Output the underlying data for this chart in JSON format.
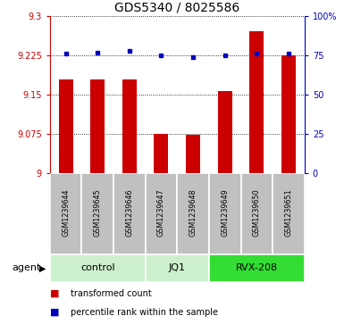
{
  "title": "GDS5340 / 8025586",
  "samples": [
    "GSM1239644",
    "GSM1239645",
    "GSM1239646",
    "GSM1239647",
    "GSM1239648",
    "GSM1239649",
    "GSM1239650",
    "GSM1239651"
  ],
  "bar_values": [
    9.18,
    9.18,
    9.18,
    9.075,
    9.073,
    9.157,
    9.272,
    9.225
  ],
  "percentile_values": [
    76,
    77,
    78,
    75,
    74,
    75,
    76,
    76
  ],
  "ylim_left": [
    9.0,
    9.3
  ],
  "ylim_right": [
    0,
    100
  ],
  "yticks_left": [
    9.0,
    9.075,
    9.15,
    9.225,
    9.3
  ],
  "ytick_labels_left": [
    "9",
    "9.075",
    "9.15",
    "9.225",
    "9.3"
  ],
  "yticks_right": [
    0,
    25,
    50,
    75,
    100
  ],
  "ytick_labels_right": [
    "0",
    "25",
    "50",
    "75",
    "100%"
  ],
  "groups": [
    {
      "label": "control",
      "indices": [
        0,
        1,
        2
      ],
      "color": "#ccf0cc"
    },
    {
      "label": "JQ1",
      "indices": [
        3,
        4
      ],
      "color": "#ccf0cc"
    },
    {
      "label": "RVX-208",
      "indices": [
        5,
        6,
        7
      ],
      "color": "#33dd33"
    }
  ],
  "bar_color": "#cc0000",
  "dot_color": "#0000bb",
  "bar_width": 0.45,
  "agent_label": "agent",
  "legend": [
    {
      "color": "#cc0000",
      "label": "transformed count"
    },
    {
      "color": "#0000bb",
      "label": "percentile rank within the sample"
    }
  ],
  "sample_box_bg": "#c0c0c0",
  "sample_box_edge": "#ffffff",
  "title_fontsize": 10,
  "tick_fontsize": 7,
  "label_fontsize": 5.8,
  "group_fontsize": 8,
  "legend_fontsize": 7,
  "agent_fontsize": 8
}
